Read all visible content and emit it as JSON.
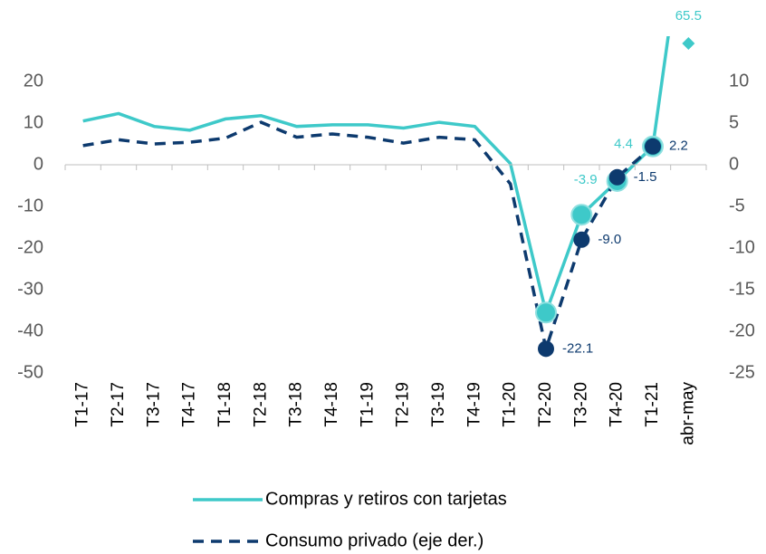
{
  "chart_data": {
    "type": "line",
    "categories": [
      "T1-17",
      "T2-17",
      "T3-17",
      "T4-17",
      "T1-18",
      "T2-18",
      "T3-18",
      "T4-18",
      "T1-19",
      "T2-19",
      "T3-19",
      "T4-19",
      "T1-20",
      "T2-20",
      "T3-20",
      "T4-20",
      "T1-21",
      "abr-may"
    ],
    "series": [
      {
        "name": "Compras y retiros con tarjetas",
        "color": "#3ec9c9",
        "axis": "y",
        "values": [
          10.5,
          12.3,
          9.2,
          8.3,
          11.0,
          11.8,
          9.2,
          9.6,
          9.6,
          8.8,
          10.2,
          9.2,
          0.3,
          -35.5,
          -12.0,
          -3.9,
          4.4,
          65.5
        ],
        "value_labels": [
          null,
          null,
          null,
          null,
          null,
          null,
          null,
          null,
          null,
          null,
          null,
          null,
          null,
          null,
          null,
          "-3.9",
          "4.4",
          "65.5"
        ]
      },
      {
        "name": "Consumo privado (eje der.)",
        "color": "#0d3a6e",
        "axis": "y2",
        "dashed": true,
        "values": [
          2.3,
          3.0,
          2.5,
          2.7,
          3.2,
          5.1,
          3.3,
          3.7,
          3.3,
          2.6,
          3.3,
          3.0,
          -2.3,
          -22.1,
          -9.0,
          -1.5,
          2.2,
          null
        ],
        "value_labels": [
          null,
          null,
          null,
          null,
          null,
          null,
          null,
          null,
          null,
          null,
          null,
          null,
          null,
          "-22.1",
          "-9.0",
          "-1.5",
          "2.2",
          null
        ]
      }
    ],
    "ylim": [
      -50,
      30
    ],
    "yticks": [
      -50,
      -40,
      -30,
      -20,
      -10,
      0,
      10,
      20
    ],
    "y2lim": [
      -25,
      15
    ],
    "y2ticks": [
      -25,
      -20,
      -15,
      -10,
      -5,
      0,
      5,
      10
    ],
    "grid": false
  }
}
